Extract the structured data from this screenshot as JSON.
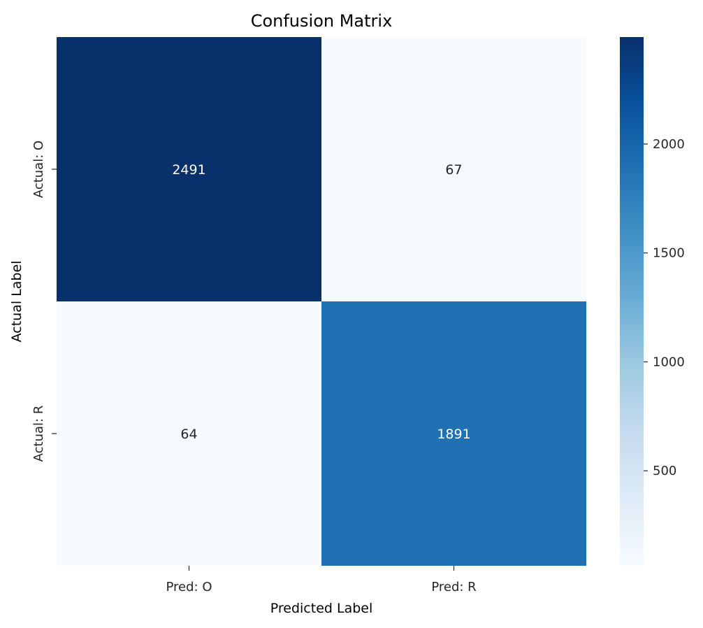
{
  "chart_data": {
    "type": "heatmap",
    "title": "Confusion Matrix",
    "xlabel": "Predicted Label",
    "ylabel": "Actual Label",
    "x_categories": [
      "Pred: O",
      "Pred: R"
    ],
    "y_categories": [
      "Actual: O",
      "Actual: R"
    ],
    "values": [
      [
        2491,
        67
      ],
      [
        64,
        1891
      ]
    ],
    "colormap": "Blues",
    "colorbar": {
      "min": 64,
      "max": 2491,
      "ticks": [
        500,
        1000,
        1500,
        2000
      ]
    },
    "colors": {
      "low": "#f7fbff",
      "high": "#08306b"
    }
  }
}
